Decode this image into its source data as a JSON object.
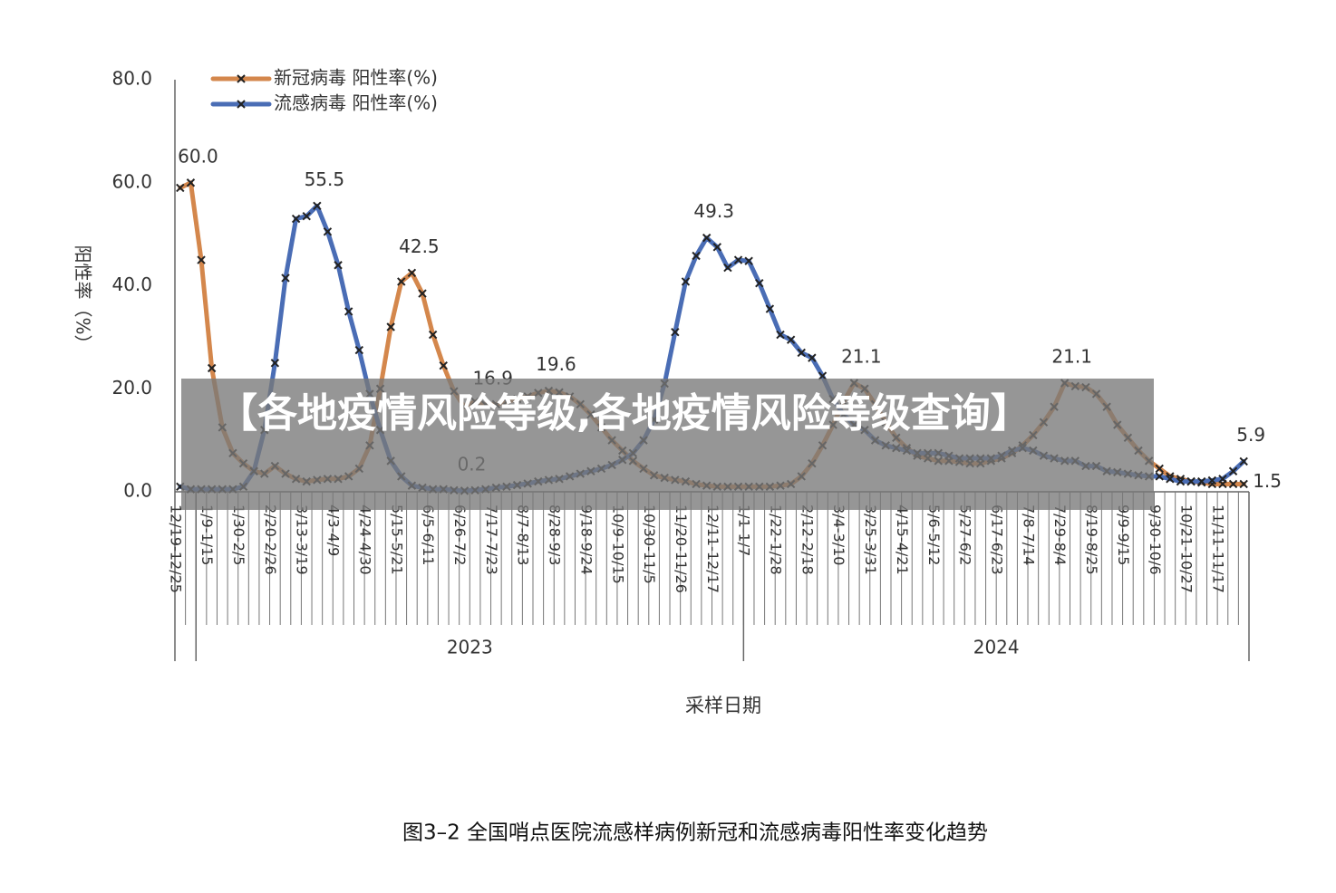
{
  "chart_data": {
    "type": "line",
    "ylabel": "阳性率（%）",
    "xlabel": "采样日期",
    "caption": "图3–2  全国哨点医院流感样病例新冠和流感病毒阳性率变化趋势",
    "overlay_title": "【各地疫情风险等级,各地疫情风险等级查询】",
    "ylim": [
      0,
      80
    ],
    "yticks": [
      {
        "value": 0,
        "label": "0.0"
      },
      {
        "value": 20,
        "label": "20.0"
      },
      {
        "value": 40,
        "label": "40.0"
      },
      {
        "value": 60,
        "label": "60.0"
      },
      {
        "value": 80,
        "label": "80.0"
      }
    ],
    "grid": false,
    "legend": "top-left",
    "groups": [
      {
        "label": "2023",
        "start": 2
      },
      {
        "label": "2024",
        "start": 54
      }
    ],
    "categories": [
      "12/19-12/25",
      null,
      null,
      "1/9-1/15",
      null,
      null,
      "1/30-2/5",
      null,
      null,
      "2/20-2/26",
      null,
      null,
      "3/13-3/19",
      null,
      null,
      "4/3-4/9",
      null,
      null,
      "4/24-4/30",
      null,
      null,
      "5/15-5/21",
      null,
      null,
      "6/5-6/11",
      null,
      null,
      "6/26-7/2",
      null,
      null,
      "7/17-7/23",
      null,
      null,
      "8/7-8/13",
      null,
      null,
      "8/28-9/3",
      null,
      null,
      "9/18-9/24",
      null,
      null,
      "10/9-10/15",
      null,
      null,
      "10/30-11/5",
      null,
      null,
      "11/20-11/26",
      null,
      null,
      "12/11-12/17",
      null,
      null,
      "1/1-1/7",
      null,
      null,
      "1/22-1/28",
      null,
      null,
      "2/12-2/18",
      null,
      null,
      "3/4-3/10",
      null,
      null,
      "3/25-3/31",
      null,
      null,
      "4/15-4/21",
      null,
      null,
      "5/6-5/12",
      null,
      null,
      "5/27-6/2",
      null,
      null,
      "6/17-6/23",
      null,
      null,
      "7/8-7/14",
      null,
      null,
      "7/29-8/4",
      null,
      null,
      "8/19-8/25",
      null,
      null,
      "9/9-9/15",
      null,
      null,
      "9/30-10/6",
      null,
      null,
      "10/21-10/27",
      null,
      null,
      "11/11-11/17",
      null,
      null
    ],
    "series": [
      {
        "name": "新冠病毒 阳性率(%)",
        "color": "#d4874c",
        "values": [
          59,
          60,
          45,
          24,
          12.5,
          7.5,
          5.5,
          4,
          3.5,
          5,
          3.5,
          2.5,
          2,
          2.3,
          2.5,
          2.5,
          3,
          4.5,
          9,
          20,
          32,
          40.8,
          42.5,
          38.5,
          30.5,
          24.5,
          19.5,
          16.5,
          17.5,
          16.9,
          17,
          17.5,
          18,
          18.5,
          19.2,
          19.6,
          19.3,
          18.5,
          17,
          15,
          12.5,
          10,
          8,
          6,
          4.5,
          3.2,
          2.7,
          2.3,
          2,
          1.5,
          1.2,
          1,
          1,
          1,
          1,
          1,
          1,
          1.2,
          1.5,
          3,
          5.5,
          9,
          13,
          17.5,
          21.1,
          20,
          17,
          13.5,
          10.5,
          8.5,
          7,
          6.5,
          6,
          6,
          5.8,
          5.5,
          5.5,
          6,
          6.5,
          7.5,
          9,
          11,
          13.5,
          16.5,
          21.1,
          20.5,
          20.3,
          19,
          16.5,
          13,
          10.5,
          8,
          6,
          4.5,
          3,
          2.5,
          2,
          1.8,
          1.5,
          1.5,
          1.5,
          1.5
        ],
        "value_labels": [
          null,
          "60.0",
          null,
          null,
          null,
          null,
          null,
          null,
          null,
          null,
          null,
          null,
          null,
          null,
          null,
          null,
          null,
          null,
          null,
          null,
          null,
          null,
          "42.5",
          null,
          null,
          null,
          null,
          null,
          null,
          "16.9",
          null,
          null,
          null,
          null,
          null,
          "19.6",
          null,
          null,
          null,
          null,
          null,
          null,
          null,
          null,
          null,
          null,
          null,
          null,
          null,
          null,
          null,
          null,
          null,
          null,
          null,
          null,
          null,
          null,
          null,
          null,
          null,
          null,
          null,
          null,
          "21.1",
          null,
          null,
          null,
          null,
          null,
          null,
          null,
          null,
          null,
          null,
          null,
          null,
          null,
          null,
          null,
          null,
          null,
          null,
          null,
          "21.1",
          null,
          null,
          null,
          null,
          null,
          null,
          null,
          null,
          null,
          null,
          null,
          null,
          null,
          null,
          null,
          null,
          "1.5"
        ]
      },
      {
        "name": "流感病毒 阳性率(%)",
        "color": "#4a6db5",
        "values": [
          1,
          0.5,
          0.5,
          0.5,
          0.5,
          0.5,
          1,
          4,
          12,
          25,
          41.5,
          53,
          53.5,
          55.5,
          50.5,
          44,
          35,
          27.5,
          19,
          12,
          6,
          3,
          1.2,
          0.8,
          0.5,
          0.5,
          0.3,
          0.2,
          0.3,
          0.5,
          0.8,
          1,
          1.3,
          1.6,
          2,
          2.3,
          2.5,
          3,
          3.5,
          4,
          4.5,
          5.2,
          6.2,
          7.5,
          10,
          14,
          21,
          31,
          40.8,
          45.8,
          49.3,
          47.5,
          43.5,
          45,
          44.8,
          40.5,
          35.5,
          30.5,
          29.5,
          27,
          26,
          22.5,
          18,
          15,
          13,
          12,
          10,
          9,
          8.5,
          8,
          7.5,
          7.5,
          7.5,
          7,
          6.5,
          6.5,
          6.5,
          6.5,
          7,
          8,
          8.5,
          8,
          7,
          6.5,
          6,
          6,
          5,
          5,
          4,
          3.8,
          3.5,
          3.2,
          3,
          3,
          2.5,
          2,
          2,
          2,
          2.2,
          2.5,
          4,
          5.9
        ],
        "value_labels": [
          null,
          null,
          null,
          null,
          null,
          null,
          null,
          null,
          null,
          null,
          null,
          null,
          null,
          "55.5",
          null,
          null,
          null,
          null,
          null,
          null,
          null,
          null,
          null,
          null,
          null,
          null,
          null,
          "0.2",
          null,
          null,
          null,
          null,
          null,
          null,
          null,
          null,
          null,
          null,
          null,
          null,
          null,
          null,
          null,
          null,
          null,
          null,
          null,
          null,
          null,
          null,
          "49.3",
          null,
          null,
          null,
          null,
          null,
          null,
          null,
          null,
          null,
          null,
          null,
          null,
          null,
          null,
          null,
          null,
          null,
          null,
          null,
          null,
          null,
          null,
          null,
          null,
          null,
          null,
          null,
          null,
          null,
          null,
          null,
          null,
          null,
          null,
          null,
          null,
          null,
          null,
          null,
          null,
          null,
          null,
          null,
          null,
          null,
          null,
          null,
          null,
          null,
          null,
          "5.9"
        ]
      }
    ]
  }
}
